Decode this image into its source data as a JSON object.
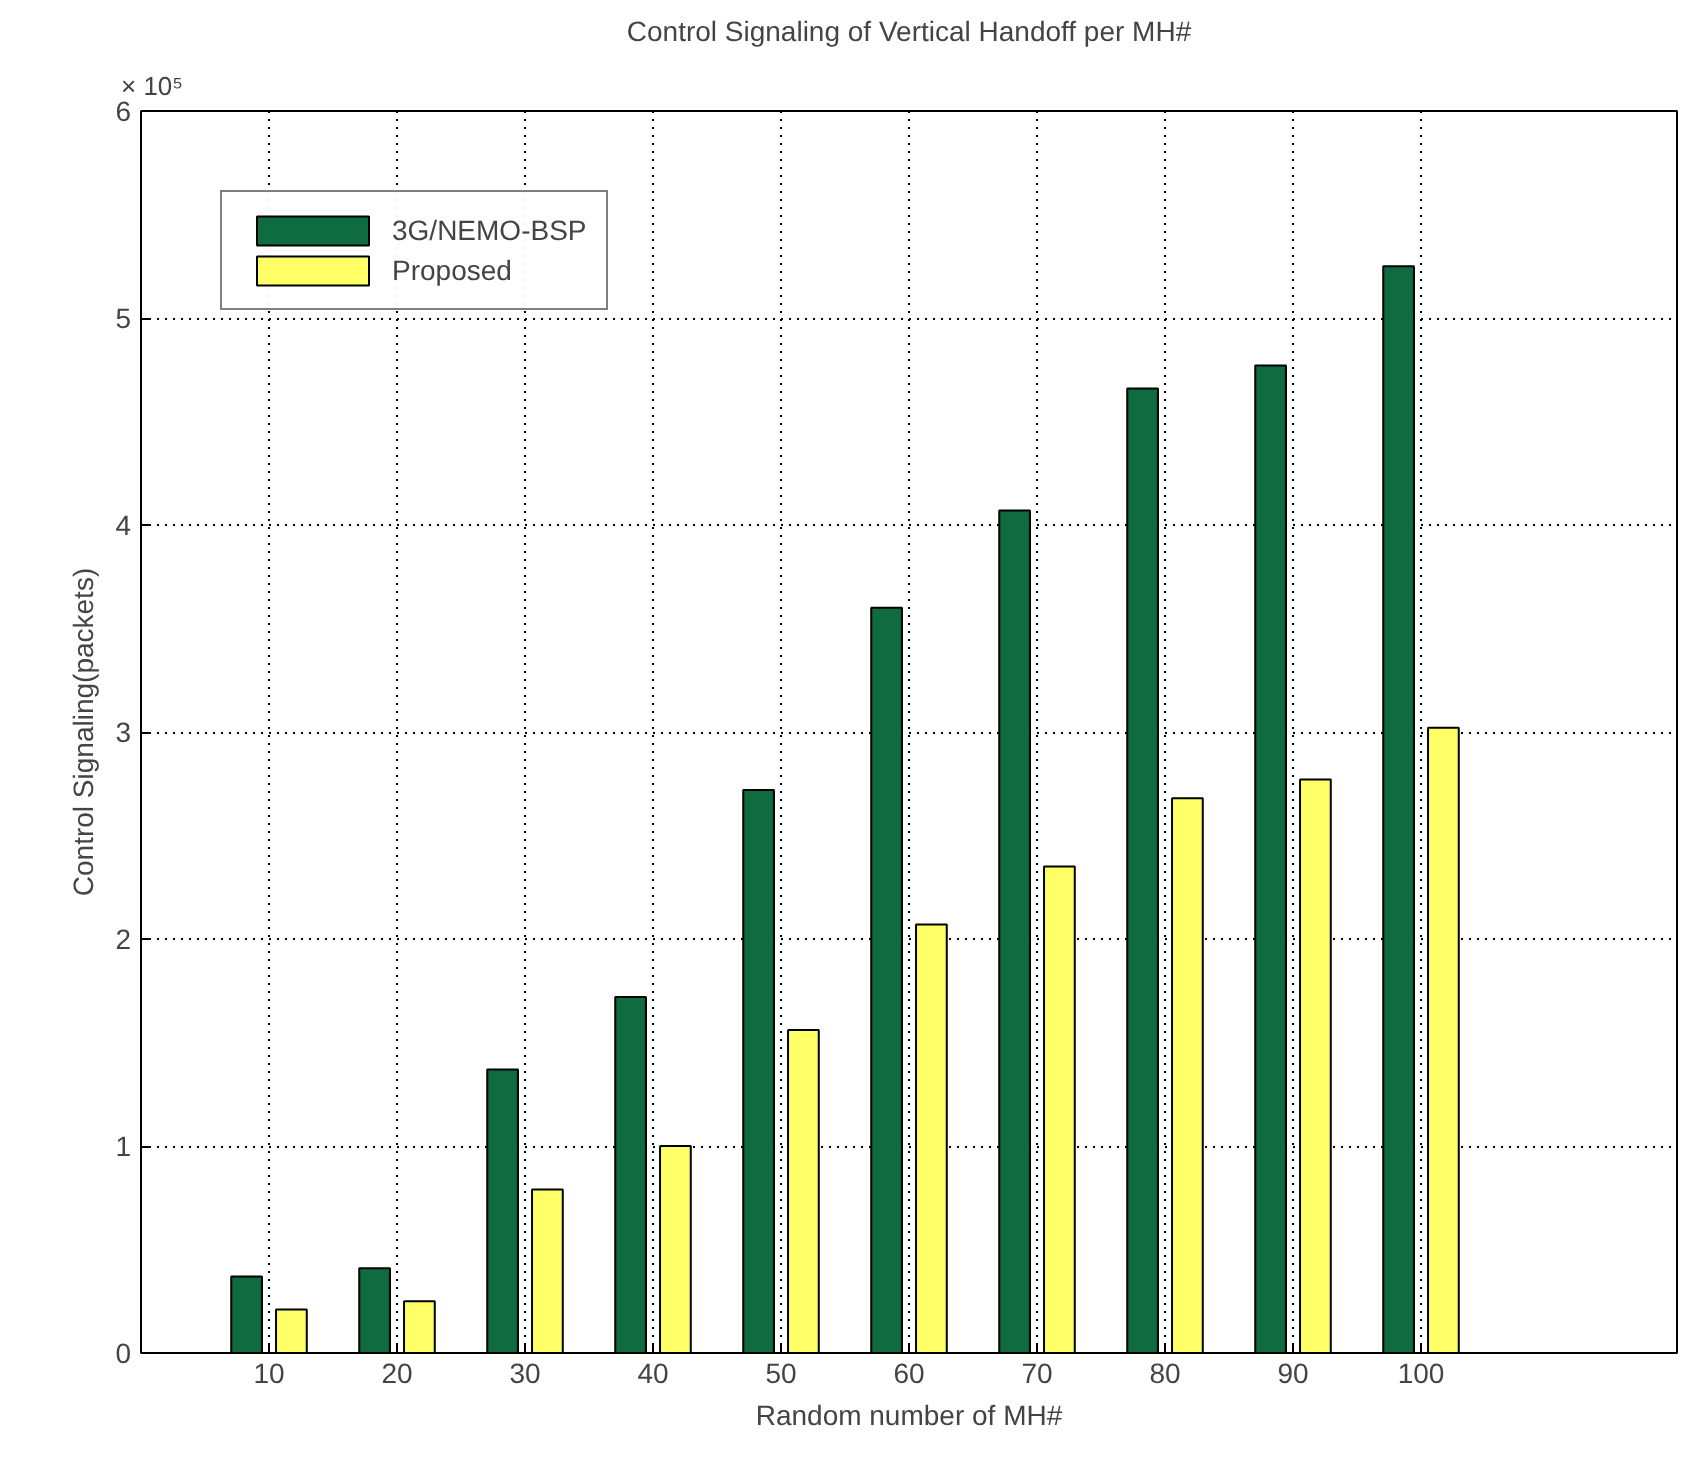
{
  "chart_data": {
    "type": "bar",
    "title": "Control Signaling of Vertical Handoff per MH#",
    "xlabel": "Random number of MH#",
    "ylabel": "Control Signaling(packets)",
    "x": [
      10,
      20,
      30,
      40,
      50,
      60,
      70,
      80,
      90,
      100
    ],
    "series": [
      {
        "name": "3G/NEMO-BSP",
        "color": "#0f6b40",
        "values": [
          0.37,
          0.41,
          1.37,
          1.72,
          2.72,
          3.6,
          4.07,
          4.66,
          4.77,
          5.25
        ]
      },
      {
        "name": "Proposed",
        "color": "#ffff66",
        "values": [
          0.21,
          0.25,
          0.79,
          1.0,
          1.56,
          2.07,
          2.35,
          2.68,
          2.77,
          3.02
        ]
      }
    ],
    "xlim": [
      0,
      120
    ],
    "xticks": [
      10,
      20,
      30,
      40,
      50,
      60,
      70,
      80,
      90,
      100
    ],
    "ylim": [
      0,
      6
    ],
    "yticks": [
      0,
      1,
      2,
      3,
      4,
      5,
      6
    ],
    "annotations": [
      "× 10⁵"
    ],
    "grid": true,
    "legend": "top left"
  }
}
